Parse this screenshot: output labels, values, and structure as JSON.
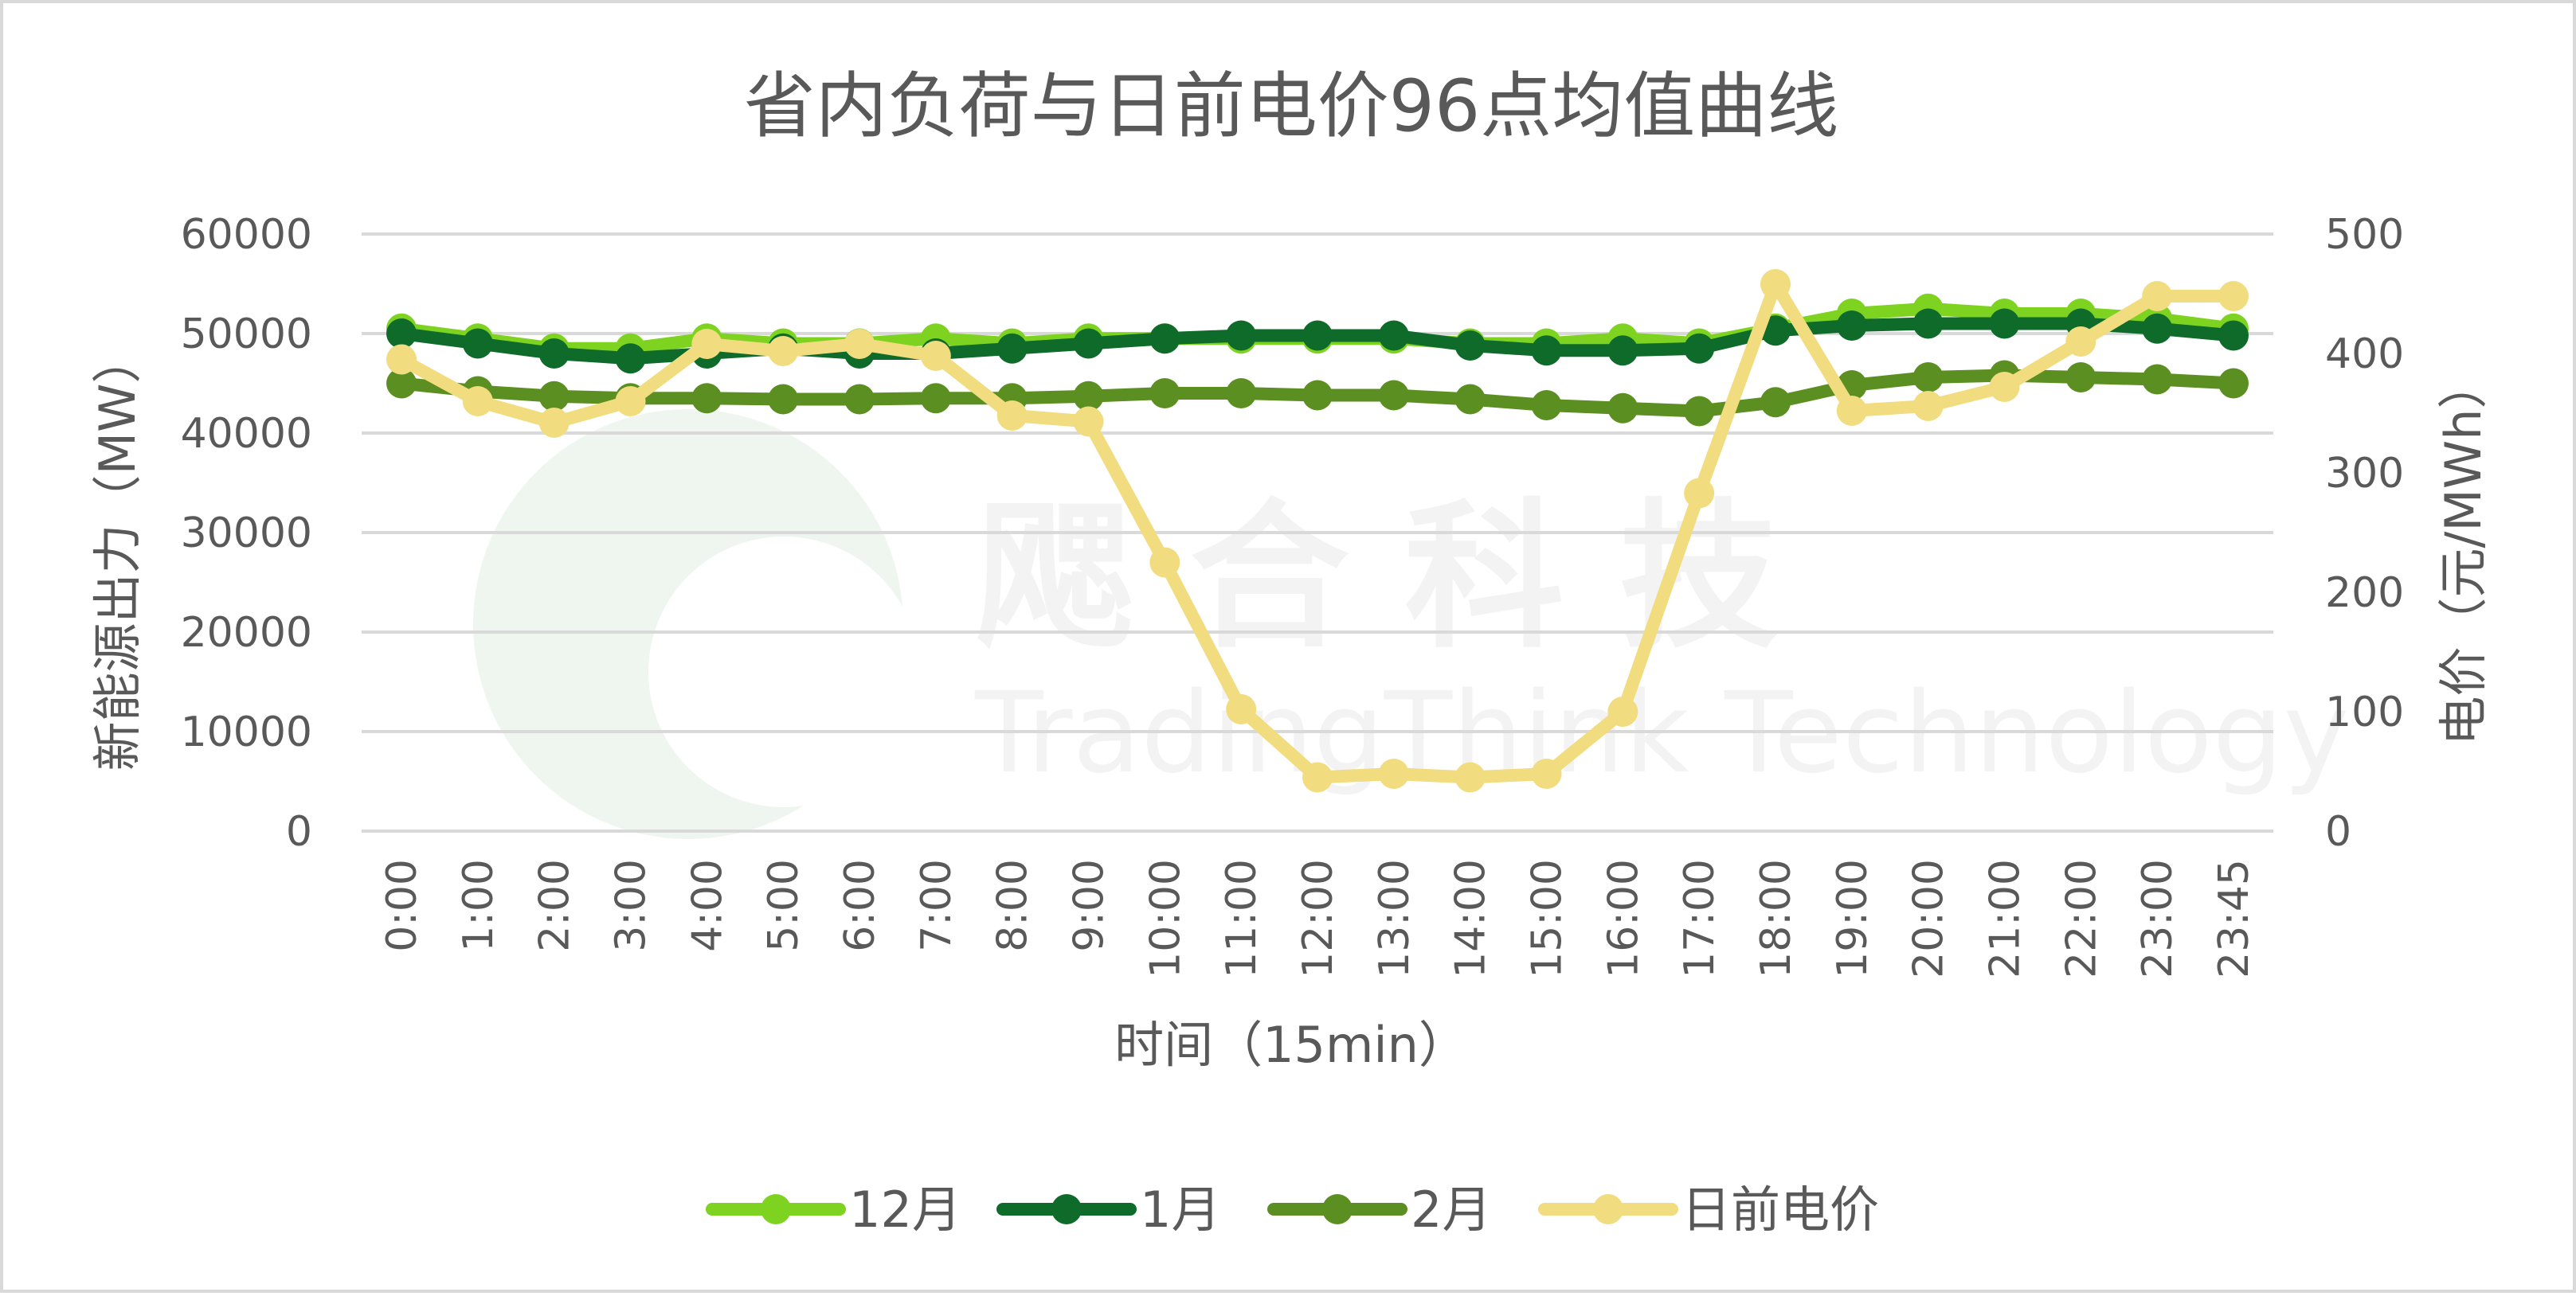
{
  "chart_data": {
    "type": "line",
    "title": "省内负荷与日前电价96点均值曲线",
    "xlabel": "时间（15min）",
    "ylabel_left": "新能源出力（MW）",
    "ylabel_right": "电价（元/MWh）",
    "ylim_left": [
      0,
      60000
    ],
    "ylim_right": [
      0,
      500
    ],
    "yticks_left": [
      "60000",
      "50000",
      "40000",
      "30000",
      "20000",
      "10000",
      "0"
    ],
    "yticks_right": [
      "500",
      "400",
      "300",
      "200",
      "100",
      "0"
    ],
    "categories": [
      "0:00",
      "1:00",
      "2:00",
      "3:00",
      "4:00",
      "5:00",
      "6:00",
      "7:00",
      "8:00",
      "9:00",
      "10:00",
      "11:00",
      "12:00",
      "13:00",
      "14:00",
      "15:00",
      "16:00",
      "17:00",
      "18:00",
      "19:00",
      "20:00",
      "21:00",
      "22:00",
      "23:00",
      "23:45"
    ],
    "grid": true,
    "legend": "bottom",
    "series": [
      {
        "name": "12月",
        "axis": "left",
        "color": "#7ed321",
        "values": [
          50500,
          49500,
          48500,
          48500,
          49500,
          49000,
          49000,
          49500,
          49000,
          49500,
          49500,
          49500,
          49500,
          49500,
          49000,
          49000,
          49500,
          49000,
          50500,
          52000,
          52500,
          52000,
          52000,
          51500,
          50500
        ]
      },
      {
        "name": "1月",
        "axis": "left",
        "color": "#0e6b2a",
        "values": [
          50000,
          49000,
          48000,
          47500,
          48000,
          48500,
          48000,
          48000,
          48500,
          49000,
          49500,
          49800,
          49800,
          49800,
          48800,
          48300,
          48300,
          48500,
          50300,
          50800,
          51000,
          51000,
          51000,
          50500,
          49800
        ]
      },
      {
        "name": "2月",
        "axis": "left",
        "color": "#5b8f22",
        "values": [
          45000,
          44200,
          43700,
          43500,
          43500,
          43400,
          43400,
          43500,
          43500,
          43700,
          44000,
          44000,
          43800,
          43800,
          43400,
          42800,
          42500,
          42200,
          43100,
          44800,
          45600,
          45800,
          45600,
          45400,
          45000
        ]
      },
      {
        "name": "日前电价",
        "axis": "right",
        "color": "#f1dc7f",
        "values": [
          395,
          360,
          342,
          360,
          408,
          402,
          408,
          398,
          348,
          343,
          225,
          102,
          45,
          48,
          45,
          48,
          100,
          283,
          458,
          352,
          356,
          372,
          410,
          448,
          448
        ]
      }
    ]
  },
  "watermark": {
    "cn": "飔 合 科 技",
    "en": "TradingThink Technology"
  }
}
